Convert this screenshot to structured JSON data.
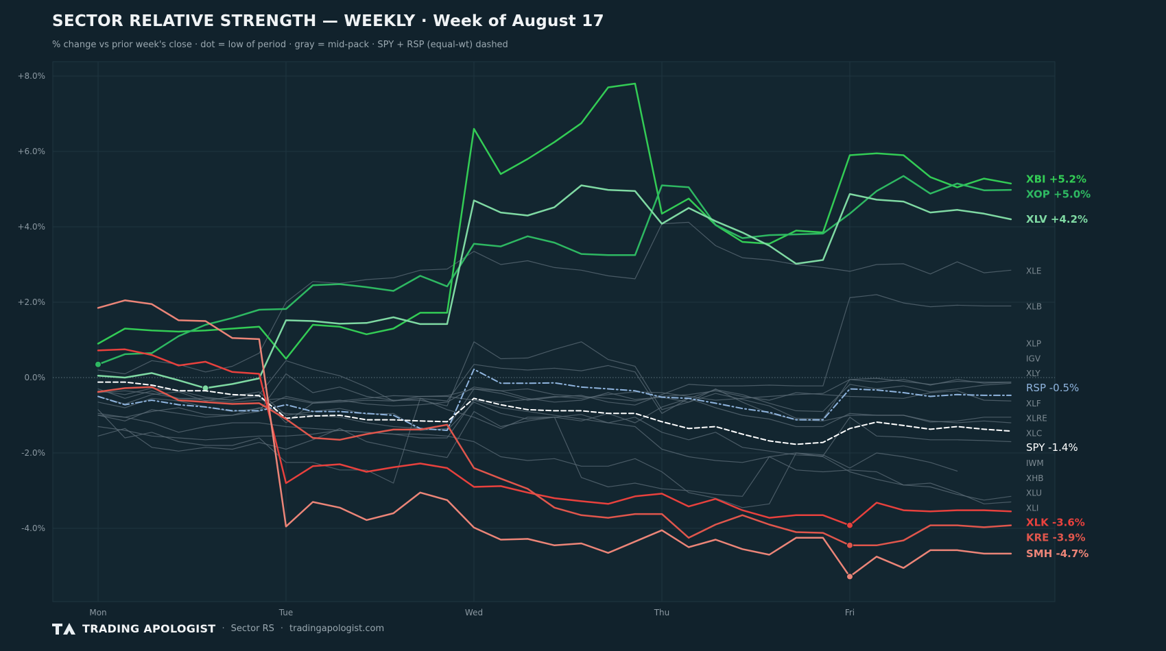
{
  "header": {
    "title": "SECTOR RELATIVE STRENGTH — WEEKLY · Week of August 17",
    "subtitle": "% change vs prior week's close · dot = low of period · gray = mid-pack · SPY + RSP (equal-wt) dashed"
  },
  "footer": {
    "brand": "TRADING APOLOGIST",
    "separator": "·",
    "product": "Sector RS",
    "site": "tradingapologist.com"
  },
  "colors": {
    "background": "#11222c",
    "plot_background": "#132630",
    "grid": "#1f3540",
    "gray_line": "#5e6e78",
    "gray_label": "#7d8a92",
    "spy": "#ffffff",
    "rsp": "#8fb4de",
    "green_bright": "#33cc55",
    "green_mid": "#2eb862",
    "green_light": "#7fd9a3",
    "red_bright": "#e8413d",
    "red_mid": "#e0564c",
    "red_light": "#ec8578"
  },
  "chart_data": {
    "type": "line",
    "x_ticks": [
      "Mon",
      "Tue",
      "Wed",
      "Thu",
      "Fri"
    ],
    "y_ticks": [
      "+8.0%",
      "+6.0%",
      "+4.0%",
      "+2.0%",
      "0.0%",
      "-2.0%",
      "-4.0%"
    ],
    "ylim": [
      -5.9,
      8.45
    ],
    "periods_per_day": 7,
    "grid": true,
    "zero_line": "dotted",
    "series": [
      {
        "name": "XBI",
        "label": "XBI +5.2%",
        "style": "green_bright",
        "width": 2.5,
        "dash": "solid",
        "emph": true,
        "low_dot": null,
        "values": [
          0.9,
          1.3,
          1.25,
          1.22,
          1.25,
          1.3,
          1.35,
          0.5,
          1.4,
          1.35,
          1.15,
          1.3,
          1.72,
          1.72,
          6.6,
          5.4,
          5.8,
          6.25,
          6.75,
          7.7,
          7.8,
          4.35,
          4.75,
          4.05,
          3.6,
          3.55,
          3.9,
          3.85,
          5.9,
          5.95,
          5.9,
          5.32,
          5.05,
          5.28,
          5.15
        ]
      },
      {
        "name": "XOP",
        "label": "XOP +5.0%",
        "style": "green_mid",
        "width": 2.5,
        "dash": "solid",
        "emph": true,
        "low_dot": 0,
        "values": [
          0.35,
          0.62,
          0.65,
          1.1,
          1.4,
          1.58,
          1.8,
          1.82,
          2.45,
          2.48,
          2.4,
          2.3,
          2.7,
          2.42,
          3.55,
          3.48,
          3.75,
          3.58,
          3.28,
          3.25,
          3.25,
          5.1,
          5.05,
          4.05,
          3.7,
          3.78,
          3.8,
          3.82,
          4.35,
          4.95,
          5.35,
          4.88,
          5.15,
          4.97,
          4.98
        ]
      },
      {
        "name": "XLV",
        "label": "XLV +4.2%",
        "style": "green_light",
        "width": 2.5,
        "dash": "solid",
        "emph": true,
        "low_dot": 4,
        "values": [
          0.05,
          0.0,
          0.12,
          -0.07,
          -0.28,
          -0.17,
          -0.02,
          1.52,
          1.5,
          1.43,
          1.45,
          1.6,
          1.42,
          1.42,
          4.7,
          4.38,
          4.3,
          4.52,
          5.1,
          4.98,
          4.95,
          4.08,
          4.5,
          4.15,
          3.85,
          3.5,
          3.02,
          3.12,
          4.87,
          4.72,
          4.67,
          4.38,
          4.45,
          4.35,
          4.2
        ]
      },
      {
        "name": "XLE",
        "label": "XLE",
        "style": "gray",
        "width": 1.2,
        "dash": "solid",
        "emph": false,
        "low_dot": null,
        "values": [
          0.2,
          0.1,
          0.45,
          0.35,
          0.15,
          0.3,
          0.65,
          2.0,
          2.55,
          2.5,
          2.6,
          2.65,
          2.85,
          2.88,
          3.35,
          3.0,
          3.1,
          2.92,
          2.85,
          2.7,
          2.62,
          4.08,
          4.12,
          3.5,
          3.18,
          3.12,
          3.0,
          2.92,
          2.82,
          3.0,
          3.02,
          2.75,
          3.07,
          2.78,
          2.85
        ]
      },
      {
        "name": "XLB",
        "label": "XLB",
        "style": "gray",
        "width": 1.2,
        "dash": "solid",
        "emph": false,
        "low_dot": null,
        "values": [
          -0.5,
          -0.7,
          -0.45,
          -0.38,
          -0.62,
          -0.5,
          -0.38,
          -1.0,
          -0.9,
          -0.82,
          -0.97,
          -0.95,
          -1.4,
          -1.35,
          -0.3,
          -0.42,
          -0.6,
          -0.52,
          -0.47,
          -0.65,
          -0.73,
          -0.45,
          -0.18,
          -0.22,
          -0.22,
          -0.2,
          -0.22,
          -0.22,
          2.12,
          2.2,
          1.98,
          1.88,
          1.92,
          1.9,
          1.9
        ]
      },
      {
        "name": "XLP",
        "label": "XLP",
        "style": "gray",
        "width": 1.2,
        "dash": "solid",
        "emph": false,
        "low_dot": null,
        "values": [
          -0.95,
          -1.05,
          -0.9,
          -0.8,
          -0.98,
          -1.0,
          -0.9,
          0.1,
          -0.4,
          -0.25,
          -0.5,
          -0.6,
          -0.6,
          -0.75,
          0.95,
          0.5,
          0.52,
          0.75,
          0.95,
          0.48,
          0.3,
          -0.85,
          -0.65,
          -0.42,
          -0.58,
          -0.75,
          -1.08,
          -1.1,
          -0.05,
          -0.12,
          -0.05,
          -0.2,
          -0.05,
          -0.15,
          -0.12
        ]
      },
      {
        "name": "XLY",
        "label": "XLY",
        "style": "gray",
        "width": 1.2,
        "dash": "solid",
        "emph": false,
        "low_dot": null,
        "values": [
          -0.35,
          -0.45,
          -0.28,
          -0.35,
          -0.52,
          -0.6,
          -0.45,
          0.45,
          0.22,
          0.05,
          -0.25,
          -0.62,
          -0.55,
          -0.62,
          0.35,
          0.25,
          0.2,
          0.25,
          0.18,
          0.32,
          0.15,
          -0.95,
          -0.55,
          -0.32,
          -0.45,
          -0.68,
          -0.88,
          -0.9,
          -0.18,
          -0.3,
          -0.22,
          -0.38,
          -0.3,
          -0.2,
          -0.15
        ]
      },
      {
        "name": "XLRE",
        "label": "XLRE",
        "style": "gray",
        "width": 1.2,
        "dash": "solid",
        "emph": false,
        "low_dot": null,
        "values": [
          -0.65,
          -0.8,
          -0.55,
          -0.62,
          -0.78,
          -0.9,
          -0.82,
          -0.5,
          -0.65,
          -0.62,
          -0.55,
          -0.48,
          -0.5,
          -0.48,
          -0.3,
          -0.35,
          -0.55,
          -0.65,
          -0.6,
          -0.4,
          -0.58,
          -0.52,
          -0.65,
          -0.3,
          -0.65,
          -0.95,
          -1.12,
          -1.15,
          -1.0,
          -1.0,
          -1.0,
          -1.18,
          -1.15,
          -1.05,
          -1.05
        ]
      },
      {
        "name": "RSP",
        "label": "RSP -0.5%",
        "style": "rsp",
        "width": 2.0,
        "dash": "dashdot",
        "emph": true,
        "low_dot": null,
        "values": [
          -0.5,
          -0.72,
          -0.6,
          -0.72,
          -0.78,
          -0.88,
          -0.88,
          -0.72,
          -0.9,
          -0.9,
          -0.95,
          -1.0,
          -1.35,
          -1.4,
          0.22,
          -0.15,
          -0.15,
          -0.14,
          -0.25,
          -0.3,
          -0.35,
          -0.52,
          -0.55,
          -0.68,
          -0.82,
          -0.92,
          -1.12,
          -1.12,
          -0.3,
          -0.33,
          -0.4,
          -0.5,
          -0.45,
          -0.47,
          -0.47
        ]
      },
      {
        "name": "IGV",
        "label": "IGV",
        "style": "gray",
        "width": 1.2,
        "dash": "solid",
        "emph": false,
        "low_dot": null,
        "values": [
          -0.3,
          -0.55,
          -0.35,
          -0.55,
          -0.55,
          -0.6,
          -0.5,
          -1.2,
          -0.68,
          -0.65,
          -0.6,
          -0.62,
          -0.5,
          -0.5,
          -0.6,
          -0.65,
          -0.58,
          -0.5,
          -0.55,
          -0.45,
          -0.38,
          -0.4,
          -0.5,
          -0.6,
          -0.55,
          -0.5,
          -0.45,
          -0.42,
          -0.05,
          -0.02,
          -0.1,
          -0.18,
          -0.1,
          -0.12,
          -0.12
        ]
      },
      {
        "name": "XLF",
        "label": "XLF",
        "style": "gray",
        "width": 1.2,
        "dash": "solid",
        "emph": false,
        "low_dot": null,
        "values": [
          -0.4,
          -0.35,
          -0.42,
          -0.55,
          -0.6,
          -0.65,
          -0.6,
          -0.55,
          -0.68,
          -0.6,
          -0.7,
          -0.75,
          -0.72,
          -0.65,
          -0.25,
          -0.35,
          -0.3,
          -0.45,
          -0.5,
          -0.55,
          -0.62,
          -0.5,
          -0.45,
          -0.35,
          -0.5,
          -0.6,
          -0.4,
          -0.45,
          -0.5,
          -0.52,
          -0.55,
          -0.4,
          -0.35,
          -0.6,
          -0.62
        ]
      },
      {
        "name": "XLC",
        "label": "XLC",
        "style": "gray",
        "width": 1.2,
        "dash": "solid",
        "emph": false,
        "low_dot": null,
        "values": [
          -1.0,
          -1.15,
          -0.85,
          -0.95,
          -1.05,
          -1.0,
          -0.8,
          -0.95,
          -1.0,
          -1.05,
          -1.2,
          -1.3,
          -1.35,
          -1.4,
          -0.65,
          -0.95,
          -1.1,
          -1.05,
          -1.15,
          -0.95,
          -1.2,
          -0.78,
          -0.55,
          -0.8,
          -1.0,
          -1.1,
          -1.3,
          -1.3,
          -0.95,
          -1.0,
          -1.0,
          -1.15,
          -1.2,
          -1.15,
          -1.2
        ]
      },
      {
        "name": "SPY",
        "label": "SPY -1.4%",
        "style": "spy",
        "width": 2.0,
        "dash": "dashed",
        "emph": true,
        "low_dot": null,
        "values": [
          -0.12,
          -0.12,
          -0.2,
          -0.35,
          -0.35,
          -0.45,
          -0.48,
          -1.08,
          -1.02,
          -1.0,
          -1.12,
          -1.12,
          -1.15,
          -1.17,
          -0.55,
          -0.72,
          -0.85,
          -0.88,
          -0.88,
          -0.95,
          -0.95,
          -1.17,
          -1.35,
          -1.3,
          -1.5,
          -1.68,
          -1.77,
          -1.72,
          -1.35,
          -1.18,
          -1.27,
          -1.37,
          -1.3,
          -1.37,
          -1.42
        ]
      },
      {
        "name": "IWM",
        "label": "IWM",
        "style": "gray",
        "width": 1.2,
        "dash": "solid",
        "emph": false,
        "low_dot": null,
        "values": [
          -1.55,
          -1.35,
          -1.85,
          -1.95,
          -1.85,
          -1.9,
          -1.72,
          -1.9,
          -1.65,
          -1.35,
          -1.7,
          -1.85,
          -2.0,
          -2.12,
          -0.9,
          -1.3,
          -1.15,
          -1.05,
          -0.98,
          -1.2,
          -1.05,
          -1.45,
          -1.65,
          -1.45,
          -1.85,
          -1.95,
          -2.05,
          -2.08,
          -1.05,
          -1.55,
          -1.58,
          -1.65,
          -1.65,
          -1.67,
          -1.7
        ]
      },
      {
        "name": "XHB",
        "label": "XHB",
        "style": "gray",
        "width": 1.2,
        "dash": "solid",
        "emph": false,
        "low_dot": null,
        "values": [
          -1.3,
          -1.4,
          -1.55,
          -1.6,
          -1.65,
          -1.6,
          -1.55,
          -1.55,
          -1.5,
          -1.4,
          -1.45,
          -1.5,
          -1.5,
          -1.55,
          -1.7,
          -2.1,
          -2.2,
          -2.15,
          -2.35,
          -2.35,
          -2.15,
          -2.5,
          -3.05,
          -3.2,
          -3.45,
          -3.35,
          -2.0,
          -2.05,
          -2.4,
          -2.0,
          -2.1,
          -2.25,
          -2.48,
          null,
          null
        ]
      },
      {
        "name": "XLI",
        "label": "XLI",
        "style": "gray",
        "width": 1.2,
        "dash": "solid",
        "emph": false,
        "low_dot": null,
        "values": [
          -0.85,
          -1.6,
          -1.45,
          -1.7,
          -1.8,
          -1.8,
          -1.6,
          -2.25,
          -2.25,
          -2.45,
          -2.45,
          -2.8,
          -0.55,
          -0.85,
          -1.05,
          -1.35,
          -1.05,
          -1.05,
          -2.65,
          -2.9,
          -2.8,
          -2.95,
          -3.0,
          -3.1,
          -3.15,
          -2.1,
          -2.45,
          -2.5,
          -2.45,
          -2.5,
          -2.85,
          -2.8,
          -3.05,
          -3.35,
          -3.3
        ]
      },
      {
        "name": "XLU",
        "label": "XLU",
        "style": "gray",
        "width": 1.2,
        "dash": "solid",
        "emph": false,
        "low_dot": null,
        "values": [
          -1.0,
          -1.05,
          -1.2,
          -1.45,
          -1.3,
          -1.2,
          -1.2,
          -1.3,
          -1.35,
          -1.4,
          -1.45,
          -1.5,
          -1.6,
          -1.6,
          -0.6,
          -0.8,
          -0.9,
          -1.0,
          -1.1,
          -1.2,
          -1.3,
          -1.9,
          -2.1,
          -2.2,
          -2.25,
          -2.1,
          -2.0,
          -2.1,
          -2.5,
          -2.7,
          -2.85,
          -2.9,
          -3.1,
          -3.25,
          -3.15
        ]
      },
      {
        "name": "XLK",
        "label": "XLK -3.6%",
        "style": "red_bright",
        "width": 2.5,
        "dash": "solid",
        "emph": true,
        "low_dot": 28,
        "values": [
          0.72,
          0.75,
          0.6,
          0.32,
          0.42,
          0.15,
          0.1,
          -2.8,
          -2.35,
          -2.3,
          -2.5,
          -2.38,
          -2.28,
          -2.4,
          -2.9,
          -2.88,
          -3.05,
          -3.2,
          -3.28,
          -3.35,
          -3.15,
          -3.08,
          -3.42,
          -3.22,
          -3.52,
          -3.72,
          -3.65,
          -3.65,
          -3.92,
          -3.32,
          -3.52,
          -3.55,
          -3.52,
          -3.52,
          -3.55
        ]
      },
      {
        "name": "KRE",
        "label": "KRE -3.9%",
        "style": "red_mid",
        "width": 2.5,
        "dash": "solid",
        "emph": true,
        "low_dot": 28,
        "values": [
          -0.38,
          -0.28,
          -0.25,
          -0.6,
          -0.65,
          -0.7,
          -0.68,
          -1.1,
          -1.6,
          -1.65,
          -1.5,
          -1.38,
          -1.38,
          -1.25,
          -2.4,
          -2.68,
          -2.95,
          -3.45,
          -3.65,
          -3.72,
          -3.62,
          -3.62,
          -4.25,
          -3.9,
          -3.65,
          -3.9,
          -4.1,
          -4.12,
          -4.45,
          -4.45,
          -4.32,
          -3.92,
          -3.92,
          -3.97,
          -3.92
        ]
      },
      {
        "name": "SMH",
        "label": "SMH -4.7%",
        "style": "red_light",
        "width": 2.5,
        "dash": "solid",
        "emph": true,
        "low_dot": 28,
        "values": [
          1.85,
          2.05,
          1.95,
          1.52,
          1.5,
          1.05,
          1.02,
          -3.95,
          -3.3,
          -3.45,
          -3.78,
          -3.6,
          -3.05,
          -3.25,
          -3.98,
          -4.3,
          -4.28,
          -4.45,
          -4.4,
          -4.65,
          -4.35,
          -4.05,
          -4.5,
          -4.3,
          -4.55,
          -4.7,
          -4.25,
          -4.25,
          -5.28,
          -4.75,
          -5.05,
          -4.58,
          -4.58,
          -4.67,
          -4.67
        ]
      }
    ]
  }
}
